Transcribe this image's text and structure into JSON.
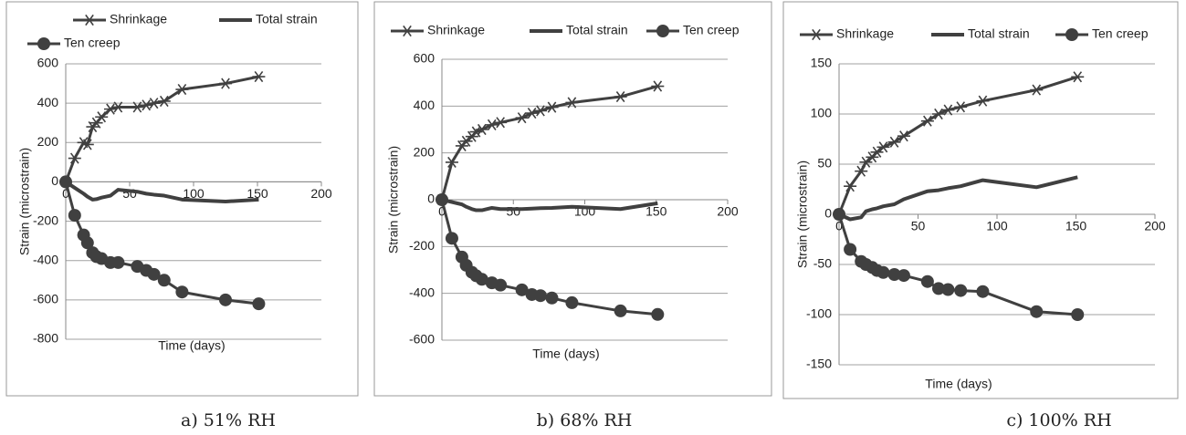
{
  "chart_data": [
    {
      "type": "line",
      "caption": "a) 51% RH",
      "xlabel": "Time  (days)",
      "ylabel": "Strain  (microstrain)",
      "x": [
        0,
        7,
        14,
        17,
        21,
        24,
        28,
        35,
        41,
        56,
        63,
        69,
        77,
        91,
        125,
        151
      ],
      "xlim": [
        0,
        200
      ],
      "xticks": [
        0,
        50,
        100,
        150,
        200
      ],
      "ylim": [
        -800,
        600
      ],
      "yticks": [
        -800,
        -600,
        -400,
        -200,
        0,
        200,
        400,
        600
      ],
      "grid": true,
      "legend": "top",
      "series": [
        {
          "name": "Shrinkage",
          "color": "#404040",
          "marker": "star",
          "values": [
            0,
            120,
            200,
            190,
            280,
            300,
            330,
            370,
            380,
            380,
            390,
            400,
            410,
            470,
            500,
            535
          ]
        },
        {
          "name": "Total strain",
          "color": "#404040",
          "marker": "none",
          "values": [
            0,
            -30,
            -60,
            -75,
            -90,
            -88,
            -80,
            -70,
            -40,
            -50,
            -60,
            -65,
            -70,
            -90,
            -100,
            -90
          ]
        },
        {
          "name": "Ten creep",
          "color": "#404040",
          "marker": "circle",
          "values": [
            0,
            -170,
            -270,
            -310,
            -360,
            -380,
            -390,
            -410,
            -410,
            -430,
            -450,
            -470,
            -500,
            -560,
            -600,
            -620
          ]
        }
      ]
    },
    {
      "type": "line",
      "caption": "b) 68% RH",
      "xlabel": "Time  (days)",
      "ylabel": "Strain  (microstrain)",
      "x": [
        0,
        7,
        14,
        17,
        21,
        24,
        28,
        35,
        41,
        56,
        63,
        69,
        77,
        91,
        125,
        151
      ],
      "xlim": [
        0,
        200
      ],
      "xticks": [
        0,
        50,
        100,
        150,
        200
      ],
      "ylim": [
        -600,
        600
      ],
      "yticks": [
        -600,
        -400,
        -200,
        0,
        200,
        400,
        600
      ],
      "grid": true,
      "legend": "top",
      "series": [
        {
          "name": "Shrinkage",
          "color": "#404040",
          "marker": "star",
          "values": [
            0,
            160,
            230,
            250,
            270,
            290,
            300,
            320,
            330,
            350,
            370,
            380,
            395,
            415,
            440,
            485
          ]
        },
        {
          "name": "Total strain",
          "color": "#404040",
          "marker": "none",
          "values": [
            0,
            -10,
            -20,
            -30,
            -40,
            -45,
            -45,
            -35,
            -40,
            -40,
            -38,
            -36,
            -35,
            -30,
            -40,
            -15
          ]
        },
        {
          "name": "Ten creep",
          "color": "#404040",
          "marker": "circle",
          "values": [
            0,
            -165,
            -245,
            -280,
            -310,
            -325,
            -340,
            -355,
            -365,
            -385,
            -405,
            -410,
            -420,
            -440,
            -475,
            -490
          ]
        }
      ]
    },
    {
      "type": "line",
      "caption": "c) 100% RH",
      "xlabel": "Time  (days)",
      "ylabel": "Strain  (microstrain)",
      "x": [
        0,
        7,
        14,
        17,
        21,
        24,
        28,
        35,
        41,
        56,
        63,
        69,
        77,
        91,
        125,
        151
      ],
      "xlim": [
        0,
        200
      ],
      "xticks": [
        0,
        50,
        100,
        150,
        200
      ],
      "ylim": [
        -150,
        150
      ],
      "yticks": [
        -150,
        -100,
        -50,
        0,
        50,
        100,
        150
      ],
      "grid": true,
      "legend": "top",
      "series": [
        {
          "name": "Shrinkage",
          "color": "#404040",
          "marker": "star",
          "values": [
            0,
            28,
            43,
            52,
            57,
            62,
            67,
            72,
            78,
            93,
            100,
            104,
            107,
            113,
            124,
            137
          ]
        },
        {
          "name": "Total strain",
          "color": "#404040",
          "marker": "none",
          "values": [
            0,
            -5,
            -3,
            3,
            5,
            6,
            8,
            10,
            15,
            23,
            24,
            26,
            28,
            34,
            27,
            37
          ]
        },
        {
          "name": "Ten creep",
          "color": "#404040",
          "marker": "circle",
          "values": [
            0,
            -35,
            -47,
            -50,
            -53,
            -56,
            -58,
            -60,
            -61,
            -67,
            -74,
            -75,
            -76,
            -77,
            -97,
            -100
          ]
        }
      ]
    }
  ]
}
